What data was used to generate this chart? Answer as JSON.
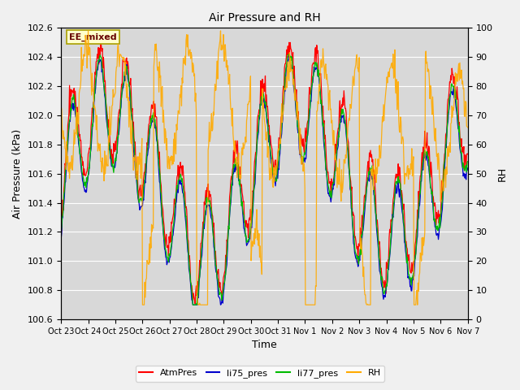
{
  "title": "Air Pressure and RH",
  "xlabel": "Time",
  "ylabel_left": "Air Pressure (kPa)",
  "ylabel_right": "RH",
  "annotation": "EE_mixed",
  "ylim_left": [
    100.6,
    102.6
  ],
  "ylim_right": [
    0,
    100
  ],
  "yticks_left": [
    100.6,
    100.8,
    101.0,
    101.2,
    101.4,
    101.6,
    101.8,
    102.0,
    102.2,
    102.4,
    102.6
  ],
  "yticks_right": [
    0,
    10,
    20,
    30,
    40,
    50,
    60,
    70,
    80,
    90,
    100
  ],
  "xtick_labels": [
    "Oct 23",
    "Oct 24",
    "Oct 25",
    "Oct 26",
    "Oct 27",
    "Oct 28",
    "Oct 29",
    "Oct 30",
    "Oct 31",
    "Nov 1",
    "Nov 2",
    "Nov 3",
    "Nov 4",
    "Nov 5",
    "Nov 6",
    "Nov 7"
  ],
  "legend_labels": [
    "AtmPres",
    "li75_pres",
    "li77_pres",
    "RH"
  ],
  "line_colors": [
    "#ff0000",
    "#0000cc",
    "#00bb00",
    "#ffaa00"
  ],
  "background_color": "#e8e8e8",
  "plot_bg_color": "#d8d8d8",
  "grid_color": "#ffffff",
  "annotation_bg": "#ffffcc",
  "annotation_border": "#aaa000"
}
